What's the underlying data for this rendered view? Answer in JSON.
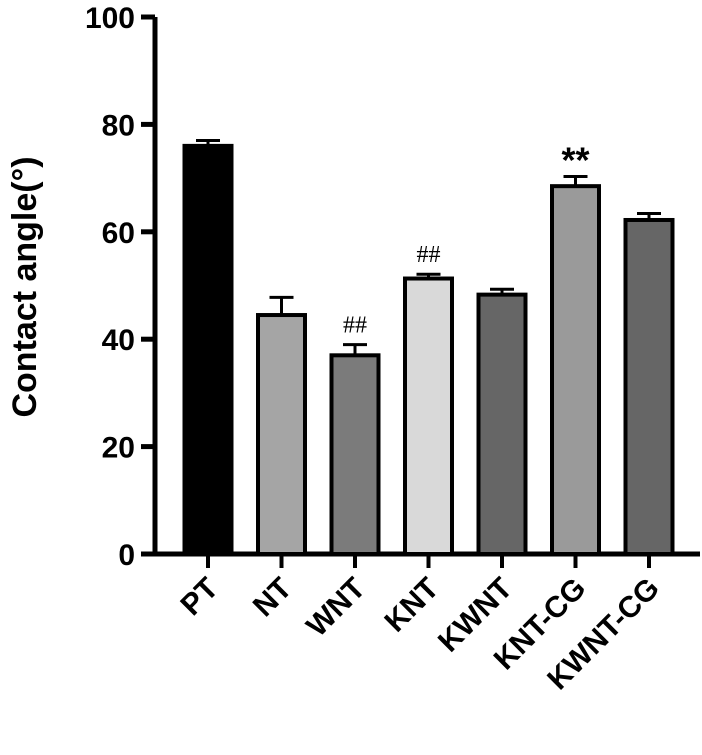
{
  "chart_data": {
    "type": "bar",
    "title": "",
    "xlabel": "",
    "ylabel": "Contact angle(°)",
    "ylim": [
      0,
      100
    ],
    "yticks": [
      0,
      20,
      40,
      60,
      80,
      100
    ],
    "grid": false,
    "categories": [
      "PT",
      "NT",
      "WNT",
      "KNT",
      "KWNT",
      "KNT-CG",
      "KWNT-CG"
    ],
    "values": [
      76,
      44.5,
      37,
      51.3,
      48.3,
      68.5,
      62.2
    ],
    "errors": [
      1,
      3.3,
      2,
      0.8,
      1,
      1.8,
      1.2
    ],
    "annotations": [
      "",
      "",
      "##",
      "##",
      "",
      "**",
      ""
    ],
    "colors": [
      "#000000",
      "#a5a5a5",
      "#7b7b7b",
      "#d9d9d9",
      "#666666",
      "#9a9a9a",
      "#666666"
    ]
  }
}
